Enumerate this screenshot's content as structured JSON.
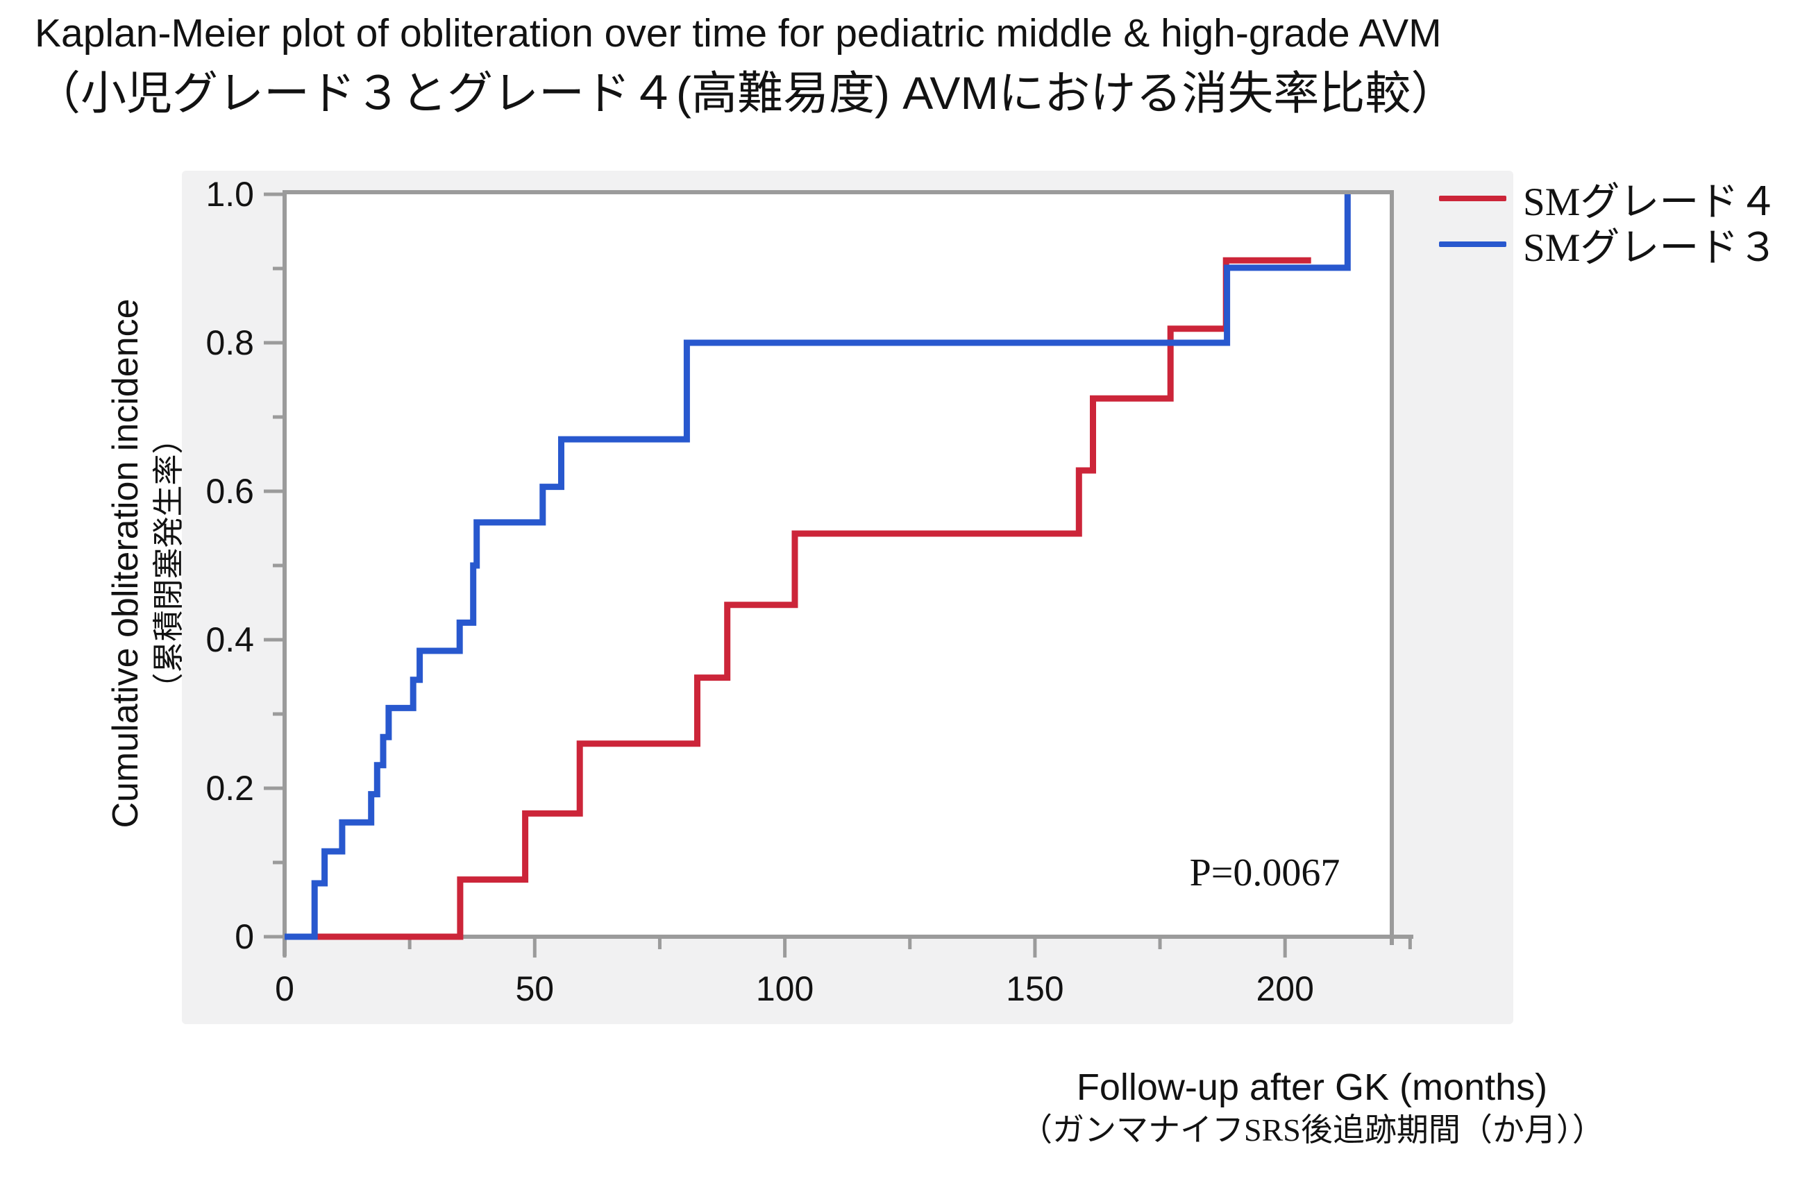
{
  "title": {
    "line1": "Kaplan-Meier plot of obliteration over time for pediatric middle & high-grade AVM",
    "line2": "（小児グレード３とグレード４(高難易度) AVMにおける消失率比較）"
  },
  "y_axis_label": {
    "en": "Cumulative obliteration incidence",
    "jp": "（累積閉塞発生率）"
  },
  "x_axis_label": {
    "en": "Follow-up after GK (months)",
    "jp": "（ガンマナイフSRS後追跡期間（か月））"
  },
  "annotation": {
    "p_value": "P=0.0067"
  },
  "legend": {
    "items": [
      {
        "label": "SMグレード４",
        "color": "#cc2539"
      },
      {
        "label": "SMグレード３",
        "color": "#2858ce"
      }
    ]
  },
  "colors": {
    "grade4_red": "#cc2539",
    "grade3_blue": "#2858ce",
    "axis_gray": "#9b9b9b",
    "panel_gray": "#f1f1f2",
    "text_black": "#121212"
  },
  "chart_data": {
    "type": "line",
    "subtype": "kaplan-meier-step",
    "title": "Kaplan-Meier plot of obliteration over time for pediatric middle & high-grade AVM",
    "xlabel": "Follow-up after GK (months)",
    "ylabel": "Cumulative obliteration incidence",
    "xlim": [
      0,
      225
    ],
    "ylim": [
      0,
      1.0
    ],
    "grid": false,
    "legend_position": "top-right-outside",
    "x_axis": {
      "major_ticks": [
        {
          "value": 0,
          "label": "0"
        },
        {
          "value": 50,
          "label": "50"
        },
        {
          "value": 100,
          "label": "100"
        },
        {
          "value": 150,
          "label": "150"
        },
        {
          "value": 200,
          "label": "200"
        }
      ],
      "minor_ticks": [
        25,
        75,
        125,
        175,
        225
      ]
    },
    "y_axis": {
      "major_ticks": [
        {
          "value": 0,
          "label": "0"
        },
        {
          "value": 0.2,
          "label": "0.2"
        },
        {
          "value": 0.4,
          "label": "0.4"
        },
        {
          "value": 0.6,
          "label": "0.6"
        },
        {
          "value": 0.8,
          "label": "0.8"
        },
        {
          "value": 1.0,
          "label": "1.0"
        }
      ],
      "minor_ticks": [
        0.1,
        0.3,
        0.5,
        0.7,
        0.9
      ]
    },
    "series": [
      {
        "name": "SMグレード４",
        "color": "#cc2539",
        "start": {
          "t": 0,
          "v": 0
        },
        "steps": [
          {
            "t": 35.1,
            "v": 0.077
          },
          {
            "t": 48.1,
            "v": 0.166
          },
          {
            "t": 59.0,
            "v": 0.26
          },
          {
            "t": 82.5,
            "v": 0.349
          },
          {
            "t": 88.5,
            "v": 0.447
          },
          {
            "t": 102.0,
            "v": 0.543
          },
          {
            "t": 158.8,
            "v": 0.628
          },
          {
            "t": 161.6,
            "v": 0.725
          },
          {
            "t": 177.1,
            "v": 0.819
          },
          {
            "t": 188.2,
            "v": 0.911
          }
        ],
        "end_t": 205.2
      },
      {
        "name": "SMグレード３",
        "color": "#2858ce",
        "start": {
          "t": 0,
          "v": 0
        },
        "steps": [
          {
            "t": 6.0,
            "v": 0.072
          },
          {
            "t": 8.0,
            "v": 0.115
          },
          {
            "t": 11.5,
            "v": 0.154
          },
          {
            "t": 17.3,
            "v": 0.192
          },
          {
            "t": 18.5,
            "v": 0.231
          },
          {
            "t": 19.7,
            "v": 0.269
          },
          {
            "t": 20.8,
            "v": 0.308
          },
          {
            "t": 25.7,
            "v": 0.346
          },
          {
            "t": 27.0,
            "v": 0.385
          },
          {
            "t": 35.0,
            "v": 0.423
          },
          {
            "t": 37.7,
            "v": 0.5
          },
          {
            "t": 38.4,
            "v": 0.558
          },
          {
            "t": 51.6,
            "v": 0.606
          },
          {
            "t": 55.3,
            "v": 0.67
          },
          {
            "t": 80.4,
            "v": 0.8
          },
          {
            "t": 188.4,
            "v": 0.901
          },
          {
            "t": 212.5,
            "v": 1.0
          }
        ],
        "end_t": 212.5
      }
    ],
    "annotations": [
      {
        "text": "P=0.0067",
        "x": 196,
        "y": 0.083
      }
    ]
  }
}
